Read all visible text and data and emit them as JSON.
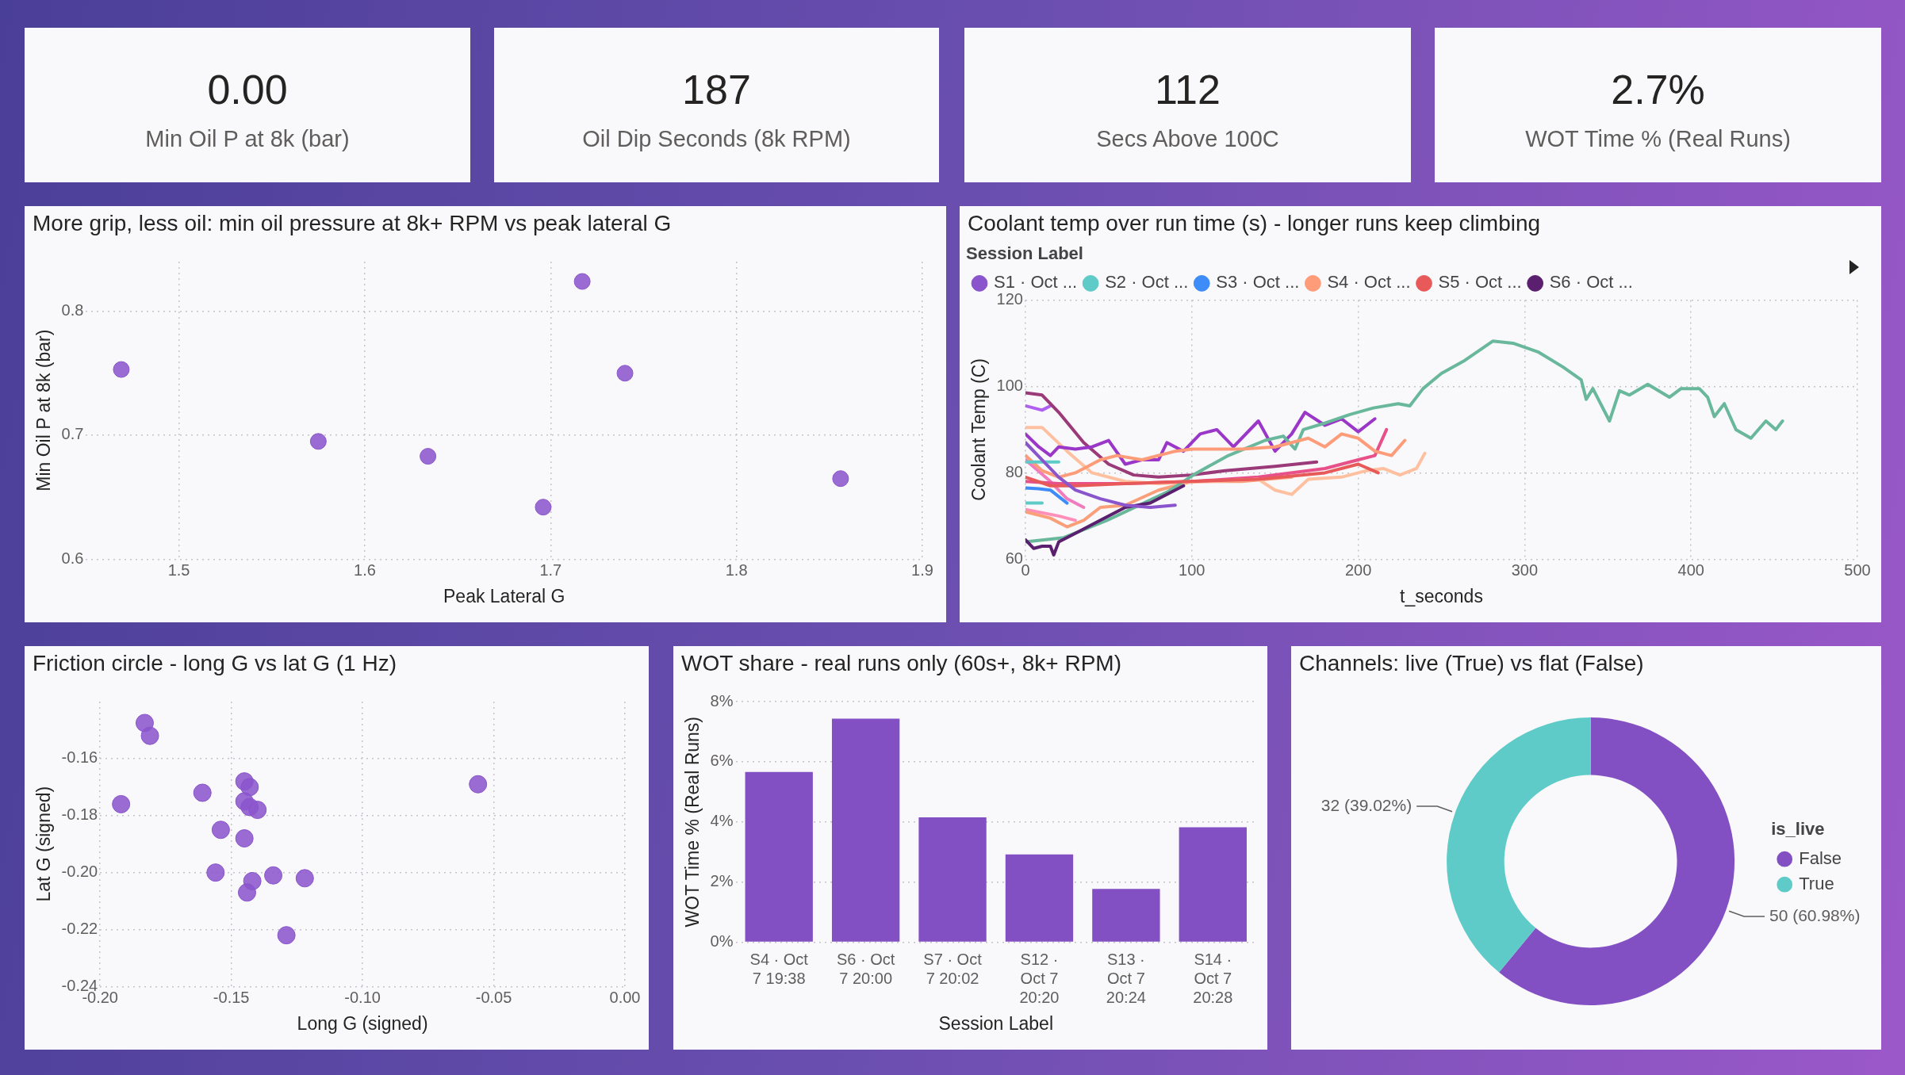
{
  "chart_data": [
    {
      "type": "other",
      "annotations": [
        "0.00",
        "Min Oil P at 8k (bar)"
      ]
    },
    {
      "type": "other",
      "annotations": [
        "187",
        "Oil Dip Seconds (8k RPM)"
      ]
    },
    {
      "type": "other",
      "annotations": [
        "112",
        "Secs Above 100C"
      ]
    },
    {
      "type": "other",
      "annotations": [
        "2.7%",
        "WOT Time % (Real Runs)"
      ]
    },
    {
      "type": "scatter",
      "title": "More grip, less oil: min oil pressure at 8k+ RPM vs peak lateral G",
      "xlabel": "Peak Lateral G",
      "ylabel": "Min Oil P at 8k (bar)",
      "x": [
        1.469,
        1.575,
        1.634,
        1.696,
        1.717,
        1.74,
        1.856
      ],
      "values": [
        0.753,
        0.695,
        0.683,
        0.642,
        0.824,
        0.75,
        0.665
      ],
      "color": "#8a55cc",
      "marker": "circle",
      "xlim": [
        1.45,
        1.9
      ],
      "xticks": [
        1.5,
        1.6,
        1.7,
        1.8,
        1.9
      ],
      "ylim": [
        0.6,
        0.84
      ],
      "yticks": [
        0.6,
        0.7,
        0.8
      ],
      "grid": true
    },
    {
      "type": "line",
      "title": "Coolant temp over run time (s) - longer runs keep climbing",
      "xlabel": "t_seconds",
      "ylabel": "Coolant Temp (C)",
      "legend_title": "Session Label",
      "legend": "top",
      "marker": "none",
      "line_style": "solid",
      "grid": true,
      "xlim": [
        0,
        500
      ],
      "xticks": [
        0,
        100,
        200,
        300,
        400,
        500
      ],
      "ylim": [
        60,
        120
      ],
      "yticks": [
        60,
        80,
        100,
        120
      ],
      "series": [
        {
          "name": "S1 · Oct ...",
          "color": "#8a55cc",
          "x": [
            0,
            10,
            20,
            30,
            45,
            60,
            75,
            90
          ],
          "values": [
            87,
            83,
            79,
            76,
            74,
            72.5,
            72,
            72.5
          ]
        },
        {
          "name": "S2 · Oct ...",
          "color": "#5fcbc8",
          "x": [
            0,
            8,
            20
          ],
          "values": [
            82.5,
            82.5,
            82.5
          ]
        },
        {
          "name": "S3 · Oct ...",
          "color": "#3e8cf7",
          "x": [
            0,
            8,
            15,
            25
          ],
          "values": [
            76.5,
            76.3,
            76,
            73
          ]
        },
        {
          "name": "S4 · Oct ...",
          "color": "#fe9b78",
          "x": [
            0,
            10,
            20,
            30,
            45,
            55,
            70,
            90,
            100,
            130,
            150,
            170,
            180,
            190,
            200,
            210,
            220,
            228
          ],
          "values": [
            84,
            80.5,
            79,
            80,
            83,
            84,
            83,
            85,
            85.5,
            85.5,
            86,
            88,
            86,
            89,
            88,
            85,
            84,
            87.5
          ]
        },
        {
          "name": "S5 · Oct ...",
          "color": "#e85a5a",
          "x": [
            0,
            15,
            30,
            60,
            100,
            140,
            180,
            200,
            212
          ],
          "values": [
            79,
            77,
            77,
            77.5,
            78,
            78.5,
            80,
            82,
            80
          ]
        },
        {
          "name": "S6 · Oct ...",
          "color": "#5a1f6e",
          "x": [
            0,
            5,
            10,
            15,
            17,
            20,
            30,
            45,
            60,
            75,
            95
          ],
          "values": [
            64.5,
            62.5,
            63,
            63,
            61,
            64,
            66,
            69,
            72,
            73,
            77
          ]
        },
        {
          "color": "#6ab89c",
          "x": [
            0,
            23,
            49,
            85,
            103,
            122,
            144,
            155,
            162,
            167,
            180,
            195,
            209,
            224,
            231,
            239,
            250,
            264,
            281,
            293,
            308,
            323,
            334,
            337,
            341,
            351,
            357,
            363,
            374,
            387,
            394,
            405,
            410,
            414,
            420,
            427,
            436,
            445,
            451,
            455
          ],
          "values": [
            64,
            65,
            69,
            75.5,
            80,
            84,
            87.5,
            88.5,
            85.5,
            90,
            91.5,
            93.5,
            95,
            96,
            95.5,
            99.5,
            103,
            106,
            110.5,
            110,
            108,
            104.5,
            101.5,
            97,
            99.5,
            92,
            99,
            98,
            100.5,
            97.5,
            99.5,
            99.5,
            97.5,
            93,
            96,
            90,
            88,
            92,
            90,
            92
          ]
        },
        {
          "color": "#9a36c8",
          "x": [
            0,
            8,
            15,
            20,
            30,
            40,
            50,
            60,
            70,
            80,
            85,
            95,
            105,
            115,
            125,
            140,
            150,
            160,
            168,
            180,
            190,
            200,
            210
          ],
          "values": [
            89,
            86,
            84,
            86,
            85.5,
            86,
            87.5,
            82,
            83,
            83,
            87,
            85,
            89,
            90,
            86,
            92,
            85,
            89,
            94,
            91,
            92.5,
            89.5,
            92.5
          ]
        },
        {
          "color": "#9b3a78",
          "x": [
            0,
            10,
            20,
            35,
            50,
            65,
            80,
            100,
            120,
            150,
            175
          ],
          "values": [
            98.5,
            98,
            94,
            87,
            82,
            79.5,
            79,
            79.5,
            80.5,
            81.5,
            82.5
          ]
        },
        {
          "color": "#ffc0a0",
          "x": [
            0,
            10,
            25,
            40,
            60,
            80,
            110,
            140,
            150,
            160,
            170,
            190,
            205,
            215,
            225,
            235,
            240
          ],
          "values": [
            90.5,
            90.5,
            85,
            80,
            78,
            77.5,
            78,
            78.5,
            76,
            75,
            78.5,
            79,
            80.5,
            81,
            79.5,
            81,
            84.5
          ]
        },
        {
          "color": "#e8508a",
          "x": [
            0,
            20,
            60,
            100,
            140,
            180,
            200,
            210,
            217
          ],
          "values": [
            78,
            77.5,
            77.5,
            78,
            79,
            81,
            83,
            84,
            90
          ]
        },
        {
          "color": "#f07cc0",
          "x": [
            0,
            15,
            25,
            35
          ],
          "values": [
            83,
            78,
            74,
            72
          ]
        },
        {
          "color": "#b060f0",
          "x": [
            0,
            10,
            15
          ],
          "values": [
            95.5,
            94.5,
            95.5
          ]
        },
        {
          "color": "#f9a07a",
          "x": [
            0,
            15,
            25,
            35,
            45,
            60,
            80,
            100,
            130,
            160
          ],
          "values": [
            71,
            69.5,
            67.5,
            69,
            72,
            72.5,
            76,
            78,
            78,
            79
          ]
        },
        {
          "color": "#ff8fb8",
          "x": [
            0,
            20,
            30
          ],
          "values": [
            71.5,
            70,
            69
          ]
        },
        {
          "color": "#5fcbc8",
          "x": [
            0,
            10
          ],
          "values": [
            73,
            73
          ]
        }
      ]
    },
    {
      "type": "scatter",
      "title": "Friction circle - long G vs lat G (1 Hz)",
      "xlabel": "Long G (signed)",
      "ylabel": "Lat G (signed)",
      "x": [
        -0.183,
        -0.181,
        -0.192,
        -0.161,
        -0.145,
        -0.143,
        -0.145,
        -0.143,
        -0.14,
        -0.154,
        -0.145,
        -0.156,
        -0.134,
        -0.142,
        -0.122,
        -0.144,
        -0.129,
        -0.056
      ],
      "values": [
        -0.1475,
        -0.152,
        -0.176,
        -0.172,
        -0.168,
        -0.17,
        -0.175,
        -0.177,
        -0.178,
        -0.185,
        -0.188,
        -0.2,
        -0.201,
        -0.203,
        -0.202,
        -0.207,
        -0.222,
        -0.169
      ],
      "color": "#8a55cc",
      "marker": "circle",
      "grid": true,
      "xlim": [
        -0.2,
        0
      ],
      "xticks": [
        {
          "value": -0.2,
          "label": "-0.20"
        },
        {
          "value": -0.15,
          "label": "-0.15"
        },
        {
          "value": -0.1,
          "label": "-0.10"
        },
        {
          "value": -0.05,
          "label": "-0.05"
        },
        {
          "value": 0,
          "label": "0.00"
        }
      ],
      "ylim": [
        -0.24,
        -0.14
      ],
      "yticks": [
        {
          "value": -0.24,
          "label": "-0.24"
        },
        {
          "value": -0.22,
          "label": "-0.22"
        },
        {
          "value": -0.2,
          "label": "-0.20"
        },
        {
          "value": -0.18,
          "label": "-0.18"
        },
        {
          "value": -0.16,
          "label": "-0.16"
        }
      ]
    },
    {
      "type": "bar",
      "title": "WOT share - real runs only (60s+, 8k+ RPM)",
      "xlabel": "Session Label",
      "ylabel": "WOT Time % (Real Runs)",
      "categories": [
        "S4 · Oct 7 19:38",
        "S6 · Oct 7 20:00",
        "S7 · Oct 7 20:02",
        "S12 · Oct 7 20:20",
        "S13 · Oct 7 20:24",
        "S14 · Oct 7 20:28"
      ],
      "values": [
        5.66,
        7.43,
        4.15,
        2.92,
        1.77,
        3.82
      ],
      "color": "#8350c4",
      "grid": "y",
      "ylim": [
        0,
        8
      ],
      "yticks": [
        {
          "value": 0,
          "label": "0%"
        },
        {
          "value": 2,
          "label": "2%"
        },
        {
          "value": 4,
          "label": "4%"
        },
        {
          "value": 6,
          "label": "6%"
        },
        {
          "value": 8,
          "label": "8%"
        }
      ]
    },
    {
      "type": "donut",
      "title": "Channels: live (True) vs flat (False)",
      "categories": [
        "False",
        "True"
      ],
      "values": [
        50,
        32
      ],
      "colors": [
        "#8350c4",
        "#5fcbc8"
      ],
      "value_labels": [
        "50 (60.98%)",
        "32 (39.02%)"
      ],
      "legend": "right",
      "legend_title": "is_live"
    }
  ]
}
